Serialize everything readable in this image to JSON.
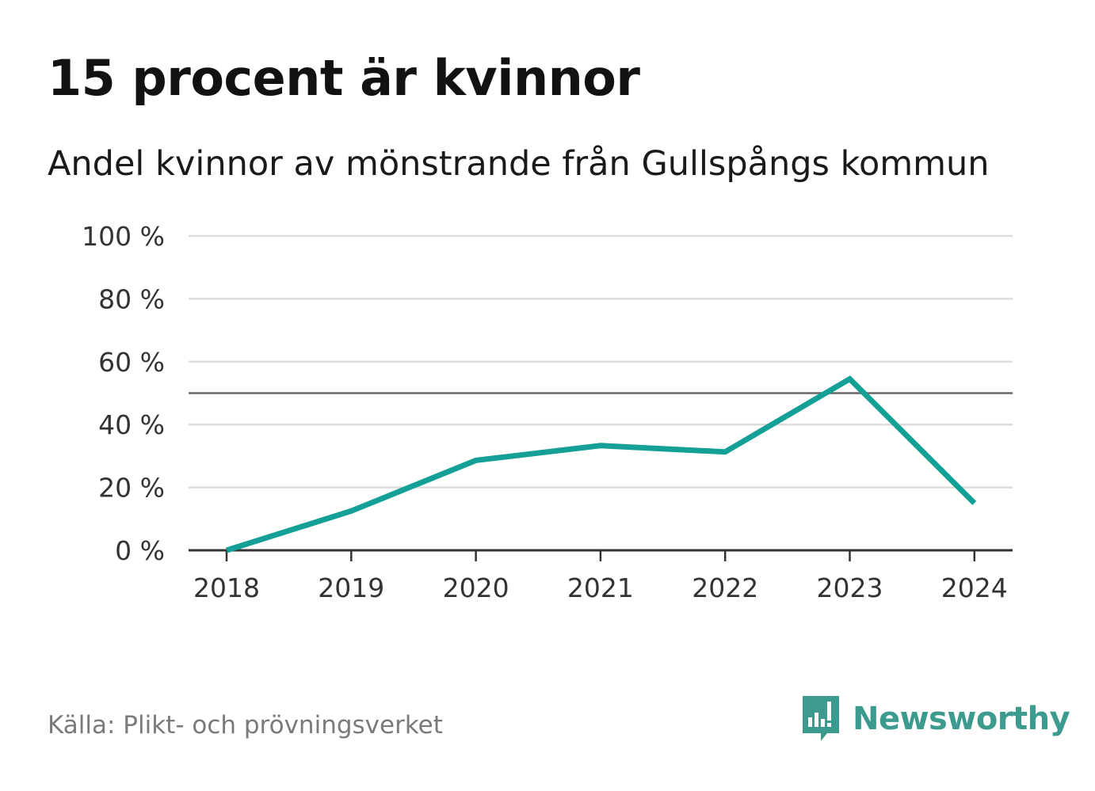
{
  "header": {
    "title": "15 procent är kvinnor",
    "subtitle": "Andel kvinnor av mönstrande från Gullspångs kommun"
  },
  "footer": {
    "source": "Källa: Plikt- och prövningsverket",
    "brand": "Newsworthy"
  },
  "colors": {
    "line": "#14a096",
    "grid": "#dddddd",
    "reference_line": "#666666",
    "axis": "#333333",
    "brand": "#3d9a8e"
  },
  "chart_data": {
    "type": "line",
    "title": "15 procent är kvinnor",
    "subtitle": "Andel kvinnor av mönstrande från Gullspångs kommun",
    "xlabel": "",
    "ylabel": "",
    "categories": [
      "2018",
      "2019",
      "2020",
      "2021",
      "2022",
      "2023",
      "2024"
    ],
    "series": [
      {
        "name": "Andel kvinnor",
        "values": [
          0,
          12.5,
          28.6,
          33.3,
          31.3,
          54.5,
          15
        ]
      }
    ],
    "reference_line": 50,
    "ylim": [
      0,
      100
    ],
    "yticks": [
      0,
      20,
      40,
      60,
      80,
      100
    ],
    "ytick_labels": [
      "0 %",
      "20 %",
      "40 %",
      "60 %",
      "80 %",
      "100 %"
    ],
    "grid": true,
    "legend": "none"
  }
}
